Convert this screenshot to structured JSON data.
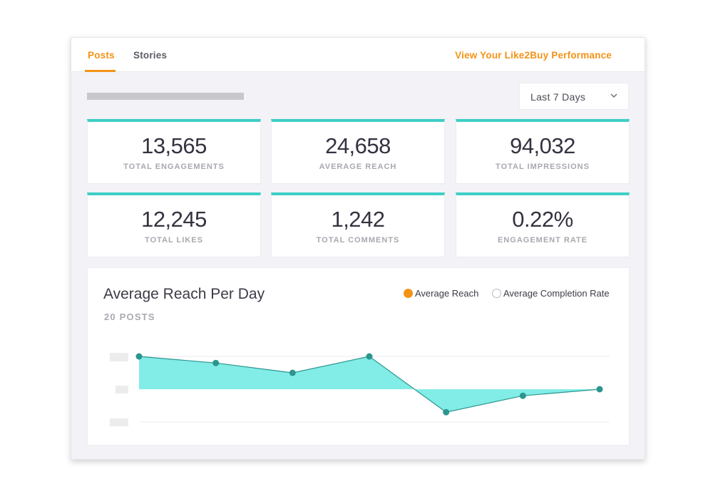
{
  "tabs": [
    {
      "label": "Posts",
      "active": true
    },
    {
      "label": "Stories",
      "active": false
    }
  ],
  "performance_link": "View Your Like2Buy Performance",
  "date_range": {
    "selected": "Last 7 Days",
    "icon": "chevron-down-icon"
  },
  "metrics": [
    {
      "value": "13,565",
      "label": "TOTAL ENGAGEMENTS"
    },
    {
      "value": "24,658",
      "label": "AVERAGE REACH"
    },
    {
      "value": "94,032",
      "label": "TOTAL IMPRESSIONS"
    },
    {
      "value": "12,245",
      "label": "TOTAL LIKES"
    },
    {
      "value": "1,242",
      "label": "TOTAL COMMENTS"
    },
    {
      "value": "0.22%",
      "label": "ENGAGEMENT RATE"
    }
  ],
  "colors": {
    "accent": "#f39316",
    "teal": "#3ecfc6",
    "area_fill": "#82ece6",
    "point": "#2a968f"
  },
  "chart": {
    "title": "Average Reach Per Day",
    "subtitle": "20 POSTS",
    "legend": [
      {
        "label": "Average Reach",
        "active": true
      },
      {
        "label": "Average Completion Rate",
        "active": false
      }
    ]
  },
  "chart_data": {
    "type": "area",
    "title": "Average Reach Per Day",
    "subtitle": "20 POSTS",
    "x": [
      1,
      2,
      3,
      4,
      5,
      6,
      7
    ],
    "series": [
      {
        "name": "Average Reach",
        "values": [
          1.0,
          0.8,
          0.5,
          1.0,
          -0.7,
          -0.2,
          0.0
        ]
      }
    ],
    "ylim": [
      -1,
      1
    ],
    "baseline": 0,
    "grid": true,
    "legend": "top-right",
    "ytick_labels_visible": false
  }
}
